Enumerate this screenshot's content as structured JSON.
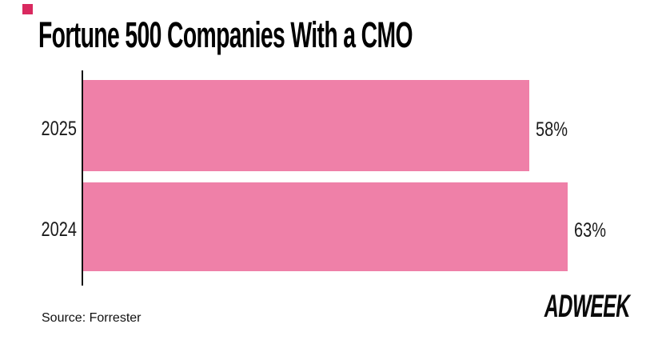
{
  "title": "Fortune 500 Companies With a CMO",
  "source": "Source: Forrester",
  "brand": {
    "logo_text": "ADWEEK",
    "mark_color": "#d9295f"
  },
  "colors": {
    "bar": "#EF80A8",
    "axis": "#111111",
    "background": "#ffffff",
    "text": "#1a1a1a"
  },
  "chart_data": {
    "type": "bar",
    "orientation": "horizontal",
    "title": "Fortune 500 Companies With a CMO",
    "categories": [
      "2025",
      "2024"
    ],
    "values": [
      58,
      63
    ],
    "value_labels": [
      "58%",
      "63%"
    ],
    "xlabel": "",
    "ylabel": "",
    "xlim": [
      0,
      100
    ],
    "grid": false,
    "legend": false,
    "source": "Source: Forrester"
  }
}
